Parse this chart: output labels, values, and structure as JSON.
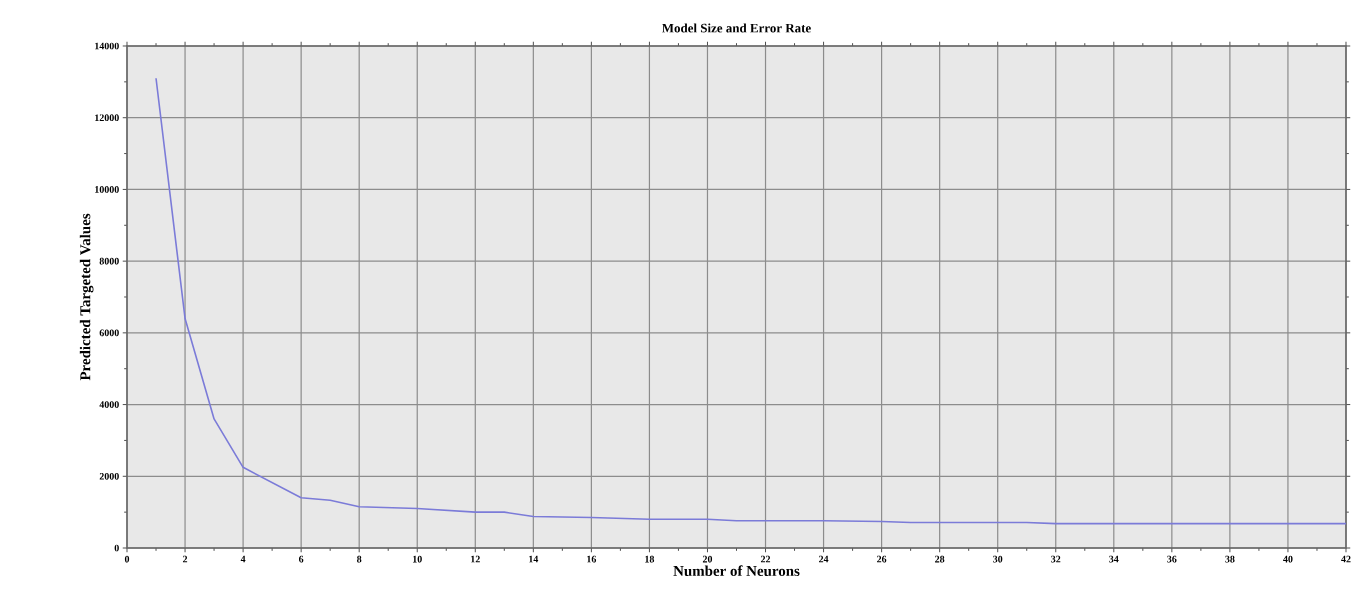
{
  "chart_data": {
    "type": "line",
    "title": "Model Size and Error Rate",
    "xlabel": "Number of Neurons",
    "ylabel": "Predicted Targeted Values",
    "x": [
      1,
      2,
      3,
      4,
      6,
      7,
      8,
      10,
      12,
      13,
      14,
      16,
      18,
      20,
      21,
      24,
      26,
      27,
      31,
      32,
      42
    ],
    "series": [
      {
        "color": "#7b7bd8",
        "values": [
          13100,
          6400,
          3600,
          2250,
          1400,
          1330,
          1150,
          1100,
          1000,
          1000,
          880,
          850,
          800,
          800,
          760,
          760,
          740,
          710,
          710,
          680,
          680
        ]
      }
    ],
    "xlim": [
      0,
      42
    ],
    "xticks": [
      0,
      2,
      4,
      6,
      8,
      10,
      12,
      14,
      16,
      18,
      20,
      22,
      24,
      26,
      28,
      30,
      32,
      34,
      36,
      38,
      40,
      42
    ],
    "ylim": [
      0,
      14000
    ],
    "yticks": [
      0,
      2000,
      4000,
      6000,
      8000,
      10000,
      12000,
      14000
    ],
    "grid": true,
    "marker": "none",
    "line_style": "solid"
  }
}
